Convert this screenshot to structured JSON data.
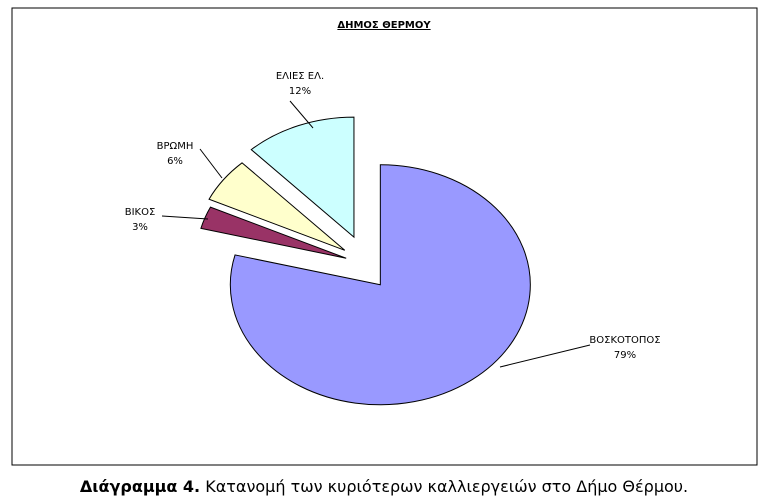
{
  "chart_data": {
    "type": "pie",
    "title": "ΔΗΜΟΣ ΘΕΡΜΟΥ",
    "categories": [
      "ΒΟΣΚΟΤΟΠΟΣ",
      "ΒΙΚΟΣ",
      "ΒΡΩΜΗ",
      "ΕΛΙΕΣ ΕΛ."
    ],
    "values": [
      79,
      3,
      6,
      12
    ],
    "value_labels": [
      "79%",
      "3%",
      "6%",
      "12%"
    ],
    "colors": [
      "#9999ff",
      "#993366",
      "#ffffcc",
      "#ccffff"
    ]
  },
  "caption": {
    "number": "Διάγραμμα 4.",
    "text": "Κατανομή των κυριότερων καλλιεργειών στο Δήμο Θέρμου."
  }
}
